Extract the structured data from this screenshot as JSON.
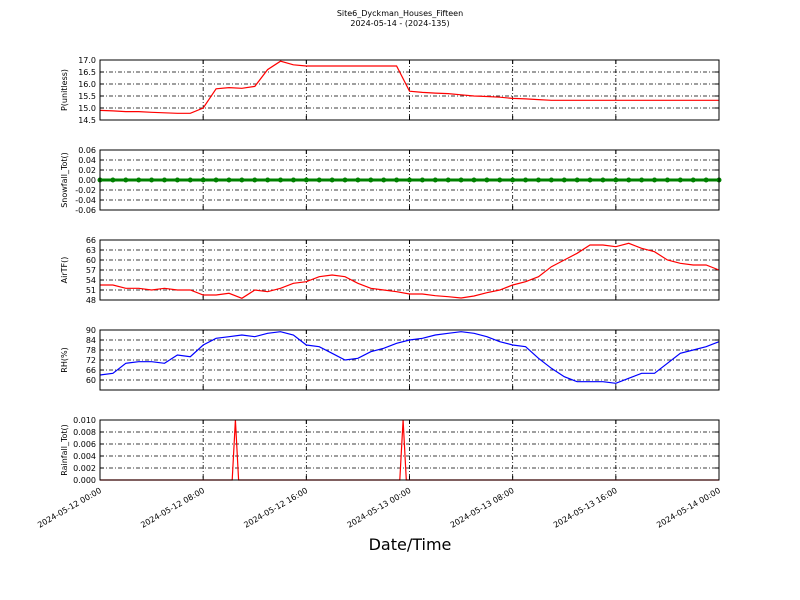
{
  "title": "Site6_Dyckman_Houses_Fifteen",
  "subtitle": "2024-05-14 - (2024-135)",
  "x_label": "Date/Time",
  "xlim": [
    "2024-05-12 00:00",
    "2024-05-14 00:00"
  ],
  "xticks": [
    "2024-05-12 00:00",
    "2024-05-12 08:00",
    "2024-05-12 16:00",
    "2024-05-13 00:00",
    "2024-05-13 08:00",
    "2024-05-13 16:00",
    "2024-05-14 00:00"
  ],
  "x": [
    "2024-05-12 00:00",
    "2024-05-12 01:00",
    "2024-05-12 02:00",
    "2024-05-12 03:00",
    "2024-05-12 04:00",
    "2024-05-12 05:00",
    "2024-05-12 06:00",
    "2024-05-12 07:00",
    "2024-05-12 08:00",
    "2024-05-12 09:00",
    "2024-05-12 10:00",
    "2024-05-12 11:00",
    "2024-05-12 12:00",
    "2024-05-12 13:00",
    "2024-05-12 14:00",
    "2024-05-12 15:00",
    "2024-05-12 16:00",
    "2024-05-12 17:00",
    "2024-05-12 18:00",
    "2024-05-12 19:00",
    "2024-05-12 20:00",
    "2024-05-12 21:00",
    "2024-05-12 22:00",
    "2024-05-12 23:00",
    "2024-05-13 00:00",
    "2024-05-13 01:00",
    "2024-05-13 02:00",
    "2024-05-13 03:00",
    "2024-05-13 04:00",
    "2024-05-13 05:00",
    "2024-05-13 06:00",
    "2024-05-13 07:00",
    "2024-05-13 08:00",
    "2024-05-13 09:00",
    "2024-05-13 10:00",
    "2024-05-13 11:00",
    "2024-05-13 12:00",
    "2024-05-13 13:00",
    "2024-05-13 14:00",
    "2024-05-13 15:00",
    "2024-05-13 16:00",
    "2024-05-13 17:00",
    "2024-05-13 18:00",
    "2024-05-13 19:00",
    "2024-05-13 20:00",
    "2024-05-13 21:00",
    "2024-05-13 22:00",
    "2024-05-13 23:00",
    "2024-05-14 00:00"
  ],
  "chart_data": [
    {
      "type": "line",
      "y_label": "P(unitless)",
      "grid": true,
      "ylim": [
        14.5,
        17.0
      ],
      "yticks": [
        14.5,
        {
          "value": 15,
          "label": "15.0"
        },
        15.5,
        {
          "value": 16,
          "label": "16.0"
        },
        16.5,
        {
          "value": 17,
          "label": "17.0"
        }
      ],
      "series": [
        {
          "color": "#ff0000",
          "values": [
            14.9,
            14.88,
            14.85,
            14.85,
            14.82,
            14.8,
            14.78,
            14.78,
            15.0,
            15.8,
            15.85,
            15.82,
            15.9,
            16.6,
            16.95,
            16.8,
            16.75,
            16.75,
            16.75,
            16.75,
            16.75,
            16.75,
            16.75,
            16.75,
            15.7,
            15.65,
            15.62,
            15.6,
            15.55,
            15.5,
            15.48,
            15.45,
            15.4,
            15.38,
            15.35,
            15.32,
            15.32,
            15.32,
            15.32,
            15.32,
            15.32,
            15.32,
            15.32,
            15.32,
            15.32,
            15.32,
            15.32,
            15.32,
            15.32
          ]
        }
      ]
    },
    {
      "type": "line",
      "y_label": "Snowfall_Tot()",
      "grid": true,
      "marker": true,
      "ylim": [
        -0.06,
        0.06
      ],
      "yticks": [
        -0.06,
        -0.04,
        -0.02,
        {
          "value": 0,
          "label": "0.00"
        },
        0.02,
        0.04,
        0.06
      ],
      "series": [
        {
          "color": "#008000",
          "values": [
            0,
            0,
            0,
            0,
            0,
            0,
            0,
            0,
            0,
            0,
            0,
            0,
            0,
            0,
            0,
            0,
            0,
            0,
            0,
            0,
            0,
            0,
            0,
            0,
            0,
            0,
            0,
            0,
            0,
            0,
            0,
            0,
            0,
            0,
            0,
            0,
            0,
            0,
            0,
            0,
            0,
            0,
            0,
            0,
            0,
            0,
            0,
            0,
            0
          ]
        }
      ]
    },
    {
      "type": "line",
      "y_label": "AirTF()",
      "grid": true,
      "ylim": [
        48,
        66
      ],
      "yticks": [
        48,
        51,
        54,
        57,
        60,
        63,
        66
      ],
      "series": [
        {
          "color": "#ff0000",
          "values": [
            52.5,
            52.5,
            51.5,
            51.5,
            51,
            51.5,
            51,
            51,
            49.5,
            49.5,
            50,
            48.5,
            51,
            50.5,
            51.5,
            53,
            53.5,
            55,
            55.5,
            55,
            53,
            51.5,
            51,
            50.5,
            49.8,
            49.8,
            49.3,
            49,
            48.6,
            49.2,
            50.2,
            51,
            52.5,
            53.5,
            55,
            58,
            60,
            62,
            64.5,
            64.5,
            64,
            65,
            63.5,
            62.5,
            60,
            59,
            58.5,
            58.5,
            57
          ]
        }
      ]
    },
    {
      "type": "line",
      "y_label": "RH(%)",
      "grid": true,
      "ylim": [
        54,
        90
      ],
      "yticks": [
        60,
        66,
        72,
        78,
        84,
        90
      ],
      "series": [
        {
          "color": "#0000ff",
          "values": [
            63,
            64,
            70,
            71,
            71,
            70,
            75,
            74,
            81,
            85,
            86,
            87,
            86,
            88,
            89,
            87,
            81,
            80,
            76,
            72,
            73,
            77,
            79,
            82,
            84,
            85,
            87,
            88,
            89,
            88,
            86,
            83,
            81,
            80,
            73,
            67,
            62,
            59,
            59,
            59,
            58,
            61,
            64,
            64,
            70,
            76,
            78,
            80,
            83
          ]
        }
      ]
    },
    {
      "type": "line",
      "y_label": "Rainfall_Tot()",
      "grid": true,
      "ylim": [
        0,
        0.01
      ],
      "yticks": [
        {
          "value": 0,
          "label": "0.000"
        },
        0.002,
        0.004,
        0.006,
        0.008,
        {
          "value": 0.01,
          "label": "0.010"
        }
      ],
      "x": [
        "2024-05-12 00:00",
        "2024-05-12 10:15",
        "2024-05-12 10:30",
        "2024-05-12 10:45",
        "2024-05-12 23:15",
        "2024-05-12 23:30",
        "2024-05-12 23:45",
        "2024-05-14 00:00"
      ],
      "series": [
        {
          "color": "#ff0000",
          "values": [
            0,
            0,
            0.01,
            0,
            0,
            0.01,
            0,
            0
          ]
        }
      ]
    }
  ]
}
